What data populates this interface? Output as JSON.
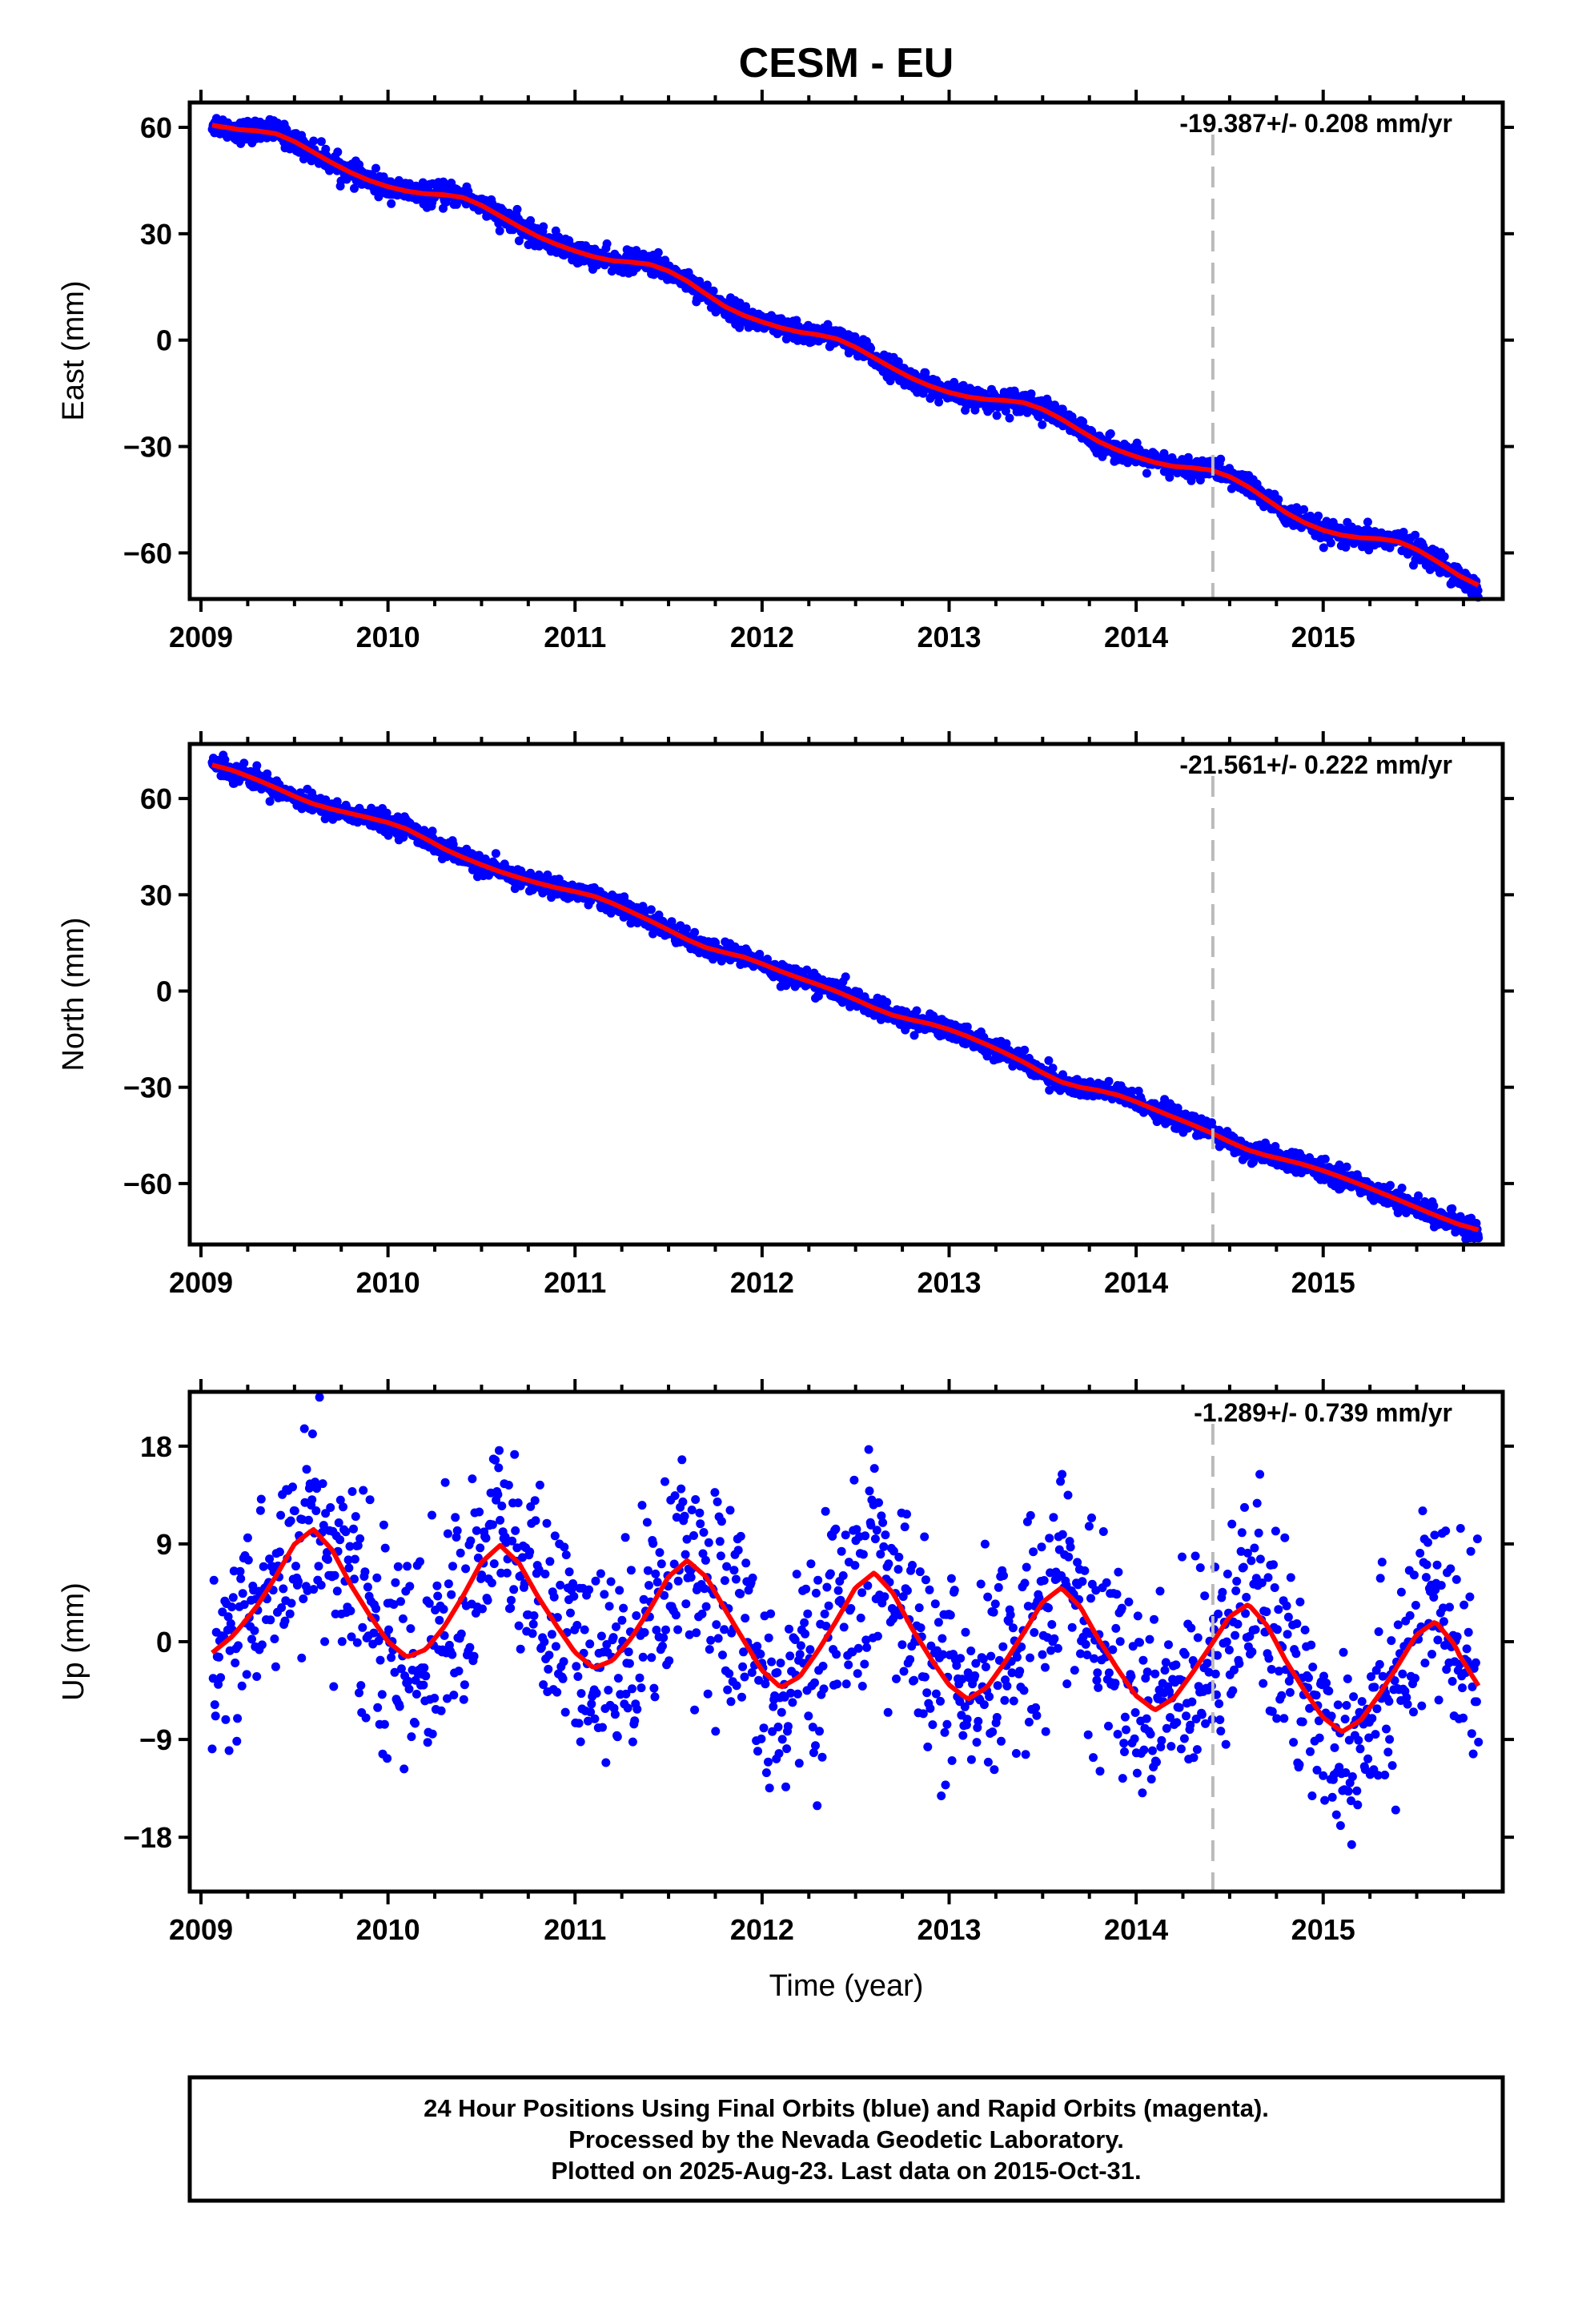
{
  "title": "CESM - EU",
  "xlabel": "Time (year)",
  "footer": [
    "24 Hour Positions Using Final Orbits (blue) and Rapid Orbits (magenta).",
    "Processed by the Nevada Geodetic Laboratory.",
    "Plotted on 2025-Aug-23. Last data on 2015-Oct-31."
  ],
  "colors": {
    "points": "#0000ff",
    "fit": "#ff0000",
    "marker_line": "#bbbbbb"
  },
  "chart_data": [
    {
      "type": "scatter",
      "ylabel": "East (mm)",
      "rate_label": "-19.387+/- 0.208 mm/yr",
      "xlim": [
        2008.94,
        2015.96
      ],
      "ylim": [
        -73,
        67
      ],
      "yticks": [
        60,
        30,
        0,
        -30,
        -60
      ],
      "xticks": [
        2009,
        2010,
        2011,
        2012,
        2013,
        2014,
        2015
      ],
      "vertical_marker_x": 2014.41,
      "data_range": [
        2009.06,
        2015.83
      ],
      "series": [
        {
          "type": "line",
          "x": [
            2009.06,
            2009.2,
            2009.4,
            2009.6,
            2009.8,
            2010.0,
            2010.2,
            2010.4,
            2010.6,
            2010.8,
            2011.0,
            2011.2,
            2011.4,
            2011.6,
            2011.8,
            2012.0,
            2012.2,
            2012.4,
            2012.6,
            2012.8,
            2013.0,
            2013.2,
            2013.4,
            2013.6,
            2013.8,
            2014.0,
            2014.2,
            2014.4,
            2014.6,
            2014.8,
            2015.0,
            2015.2,
            2015.4,
            2015.6,
            2015.83
          ],
          "y": [
            61,
            59,
            59,
            53,
            47,
            43,
            41,
            41,
            35,
            29,
            25,
            22,
            22,
            17,
            9,
            5,
            2,
            1,
            -5,
            -11,
            -15,
            -17,
            -17,
            -22,
            -29,
            -33,
            -36,
            -36,
            -41,
            -49,
            -54,
            -56,
            -56,
            -62,
            -70
          ]
        },
        {
          "type": "scatter",
          "x": [
            2009.06,
            2009.2,
            2009.4,
            2009.6,
            2009.8,
            2010.0,
            2010.2,
            2010.4,
            2010.6,
            2010.8,
            2011.0,
            2011.2,
            2011.4,
            2011.6,
            2011.8,
            2012.0,
            2012.2,
            2012.4,
            2012.6,
            2012.8,
            2013.0,
            2013.2,
            2013.4,
            2013.6,
            2013.8,
            2014.0,
            2014.2,
            2014.4,
            2014.6,
            2014.8,
            2015.0,
            2015.2,
            2015.4,
            2015.6,
            2015.83
          ],
          "y": [
            61,
            59,
            59,
            53,
            47,
            43,
            41,
            41,
            35,
            29,
            25,
            22,
            22,
            17,
            9,
            5,
            2,
            1,
            -5,
            -11,
            -15,
            -17,
            -17,
            -22,
            -29,
            -33,
            -36,
            -36,
            -41,
            -49,
            -54,
            -56,
            -56,
            -62,
            -70
          ],
          "scatter_mm": 1.5
        }
      ]
    },
    {
      "type": "scatter",
      "ylabel": "North (mm)",
      "rate_label": "-21.561+/- 0.222 mm/yr",
      "xlim": [
        2008.94,
        2015.96
      ],
      "ylim": [
        -79,
        77
      ],
      "yticks": [
        60,
        30,
        0,
        -30,
        -60
      ],
      "xticks": [
        2009,
        2010,
        2011,
        2012,
        2013,
        2014,
        2015
      ],
      "vertical_marker_x": 2014.41,
      "data_range": [
        2009.06,
        2015.83
      ],
      "series": [
        {
          "type": "line",
          "x": [
            2009.06,
            2009.3,
            2009.6,
            2009.9,
            2010.1,
            2010.3,
            2010.6,
            2010.9,
            2011.1,
            2011.4,
            2011.7,
            2011.9,
            2012.1,
            2012.4,
            2012.7,
            2012.9,
            2013.1,
            2013.4,
            2013.6,
            2013.9,
            2014.1,
            2014.4,
            2014.6,
            2014.9,
            2015.1,
            2015.4,
            2015.6,
            2015.83
          ],
          "y": [
            71,
            66,
            58,
            54,
            51,
            44,
            37,
            32,
            30,
            22,
            13,
            11,
            6,
            0,
            -8,
            -10,
            -14,
            -22,
            -29,
            -32,
            -37,
            -44,
            -50,
            -54,
            -58,
            -65,
            -70,
            -75
          ]
        },
        {
          "type": "scatter",
          "x": [
            2009.06,
            2009.3,
            2009.6,
            2009.9,
            2010.1,
            2010.3,
            2010.6,
            2010.9,
            2011.1,
            2011.4,
            2011.7,
            2011.9,
            2012.1,
            2012.4,
            2012.7,
            2012.9,
            2013.1,
            2013.4,
            2013.6,
            2013.9,
            2014.1,
            2014.4,
            2014.6,
            2014.9,
            2015.1,
            2015.4,
            2015.6,
            2015.83
          ],
          "y": [
            71,
            66,
            58,
            54,
            51,
            44,
            37,
            32,
            30,
            22,
            13,
            11,
            6,
            0,
            -8,
            -10,
            -14,
            -22,
            -29,
            -32,
            -37,
            -44,
            -50,
            -54,
            -58,
            -65,
            -70,
            -75
          ],
          "scatter_mm": 1.5
        }
      ]
    },
    {
      "type": "scatter",
      "ylabel": "Up (mm)",
      "rate_label": "-1.289+/- 0.739 mm/yr",
      "xlim": [
        2008.94,
        2015.96
      ],
      "ylim": [
        -23,
        23
      ],
      "yticks": [
        18,
        9,
        0,
        -9,
        -18
      ],
      "xticks": [
        2009,
        2010,
        2011,
        2012,
        2013,
        2014,
        2015
      ],
      "vertical_marker_x": 2014.41,
      "data_range": [
        2009.06,
        2015.83
      ],
      "series": [
        {
          "type": "line",
          "x": [
            2009.06,
            2009.3,
            2009.6,
            2009.8,
            2010.1,
            2010.3,
            2010.6,
            2010.8,
            2011.1,
            2011.3,
            2011.6,
            2011.8,
            2012.1,
            2012.3,
            2012.6,
            2012.8,
            2013.1,
            2013.3,
            2013.6,
            2013.8,
            2014.1,
            2014.3,
            2014.6,
            2014.8,
            2015.1,
            2015.3,
            2015.6,
            2015.83
          ],
          "y": [
            -1.5,
            3,
            12,
            5,
            -2.5,
            1,
            10.5,
            4,
            -3.5,
            0,
            9,
            3,
            -5.5,
            -1,
            8,
            1,
            -6.5,
            -2,
            6.5,
            0,
            -7.5,
            -3,
            5,
            -2,
            -9.5,
            -5,
            3.5,
            -5
          ]
        },
        {
          "type": "scatter",
          "x": [
            2009.06,
            2009.3,
            2009.6,
            2009.8,
            2010.1,
            2010.3,
            2010.6,
            2010.8,
            2011.1,
            2011.3,
            2011.6,
            2011.8,
            2012.1,
            2012.3,
            2012.6,
            2012.8,
            2013.1,
            2013.3,
            2013.6,
            2013.8,
            2014.1,
            2014.3,
            2014.6,
            2014.8,
            2015.1,
            2015.3,
            2015.6,
            2015.83
          ],
          "y": [
            -1.5,
            3,
            12,
            5,
            -2.5,
            1,
            10.5,
            4,
            -3.5,
            0,
            9,
            3,
            -5.5,
            -1,
            8,
            1,
            -6.5,
            -2,
            6.5,
            0,
            -7.5,
            -3,
            5,
            -2,
            -9.5,
            -5,
            3.5,
            -5
          ],
          "scatter_mm": 4.8
        }
      ]
    }
  ]
}
